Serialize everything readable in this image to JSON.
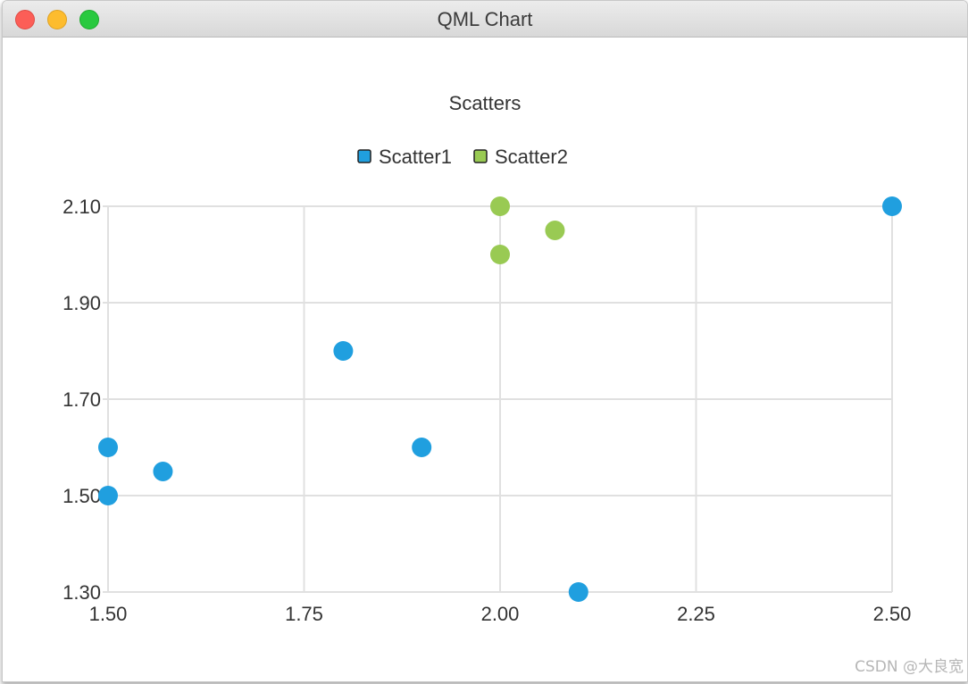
{
  "window": {
    "title": "QML Chart"
  },
  "watermark": "CSDN @大良宽",
  "chart_data": {
    "type": "scatter",
    "title": "Scatters",
    "legend_position": "top",
    "grid": true,
    "xlim": [
      1.5,
      2.5
    ],
    "ylim": [
      1.3,
      2.1
    ],
    "x_ticks": [
      "1.50",
      "1.75",
      "2.00",
      "2.25",
      "2.50"
    ],
    "y_ticks": [
      "2.10",
      "1.90",
      "1.70",
      "1.50",
      "1.30"
    ],
    "series": [
      {
        "name": "Scatter1",
        "color": "#209fdf",
        "points": [
          {
            "x": 1.5,
            "y": 1.5
          },
          {
            "x": 1.5,
            "y": 1.6
          },
          {
            "x": 1.57,
            "y": 1.55
          },
          {
            "x": 1.8,
            "y": 1.8
          },
          {
            "x": 1.9,
            "y": 1.6
          },
          {
            "x": 2.1,
            "y": 1.3
          },
          {
            "x": 2.5,
            "y": 2.1
          }
        ]
      },
      {
        "name": "Scatter2",
        "color": "#99ca53",
        "points": [
          {
            "x": 2.0,
            "y": 2.0
          },
          {
            "x": 2.0,
            "y": 2.1
          },
          {
            "x": 2.07,
            "y": 2.05
          }
        ]
      }
    ]
  }
}
